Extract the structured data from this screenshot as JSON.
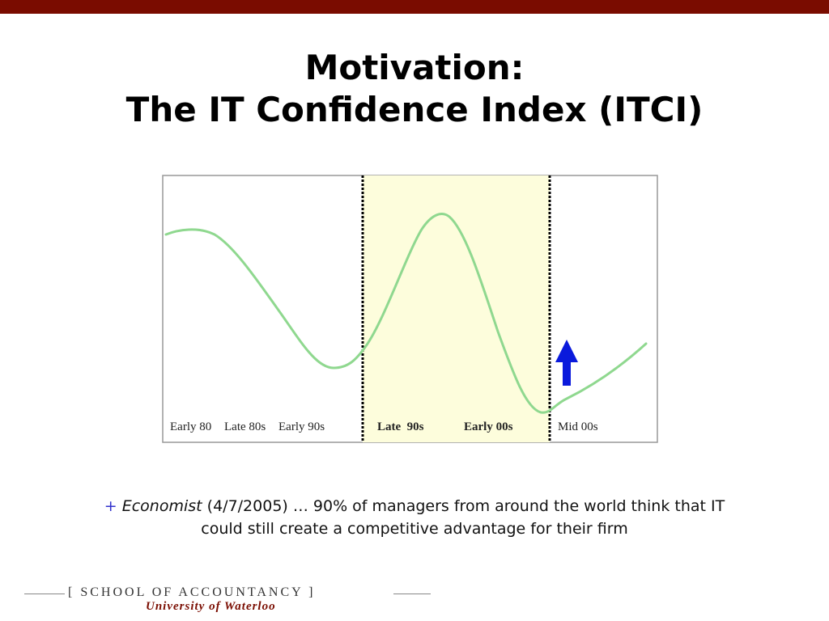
{
  "title": {
    "line1": "Motivation:",
    "line2": "The IT Confidence Index (ITCI)"
  },
  "chart": {
    "labels": [
      "Early 80",
      "Late 80s",
      "Early 90s",
      "Late  90s",
      "Early 00s",
      "Mid 00s"
    ]
  },
  "caption": {
    "bullet": "+",
    "source": "Economist",
    "text": " (4/7/2005) … 90% of managers from around the world think that IT could still create a competitive advantage for their firm"
  },
  "footer": {
    "school": "[ SCHOOL OF ACCOUNTANCY ]",
    "university": "University of Waterloo"
  }
}
